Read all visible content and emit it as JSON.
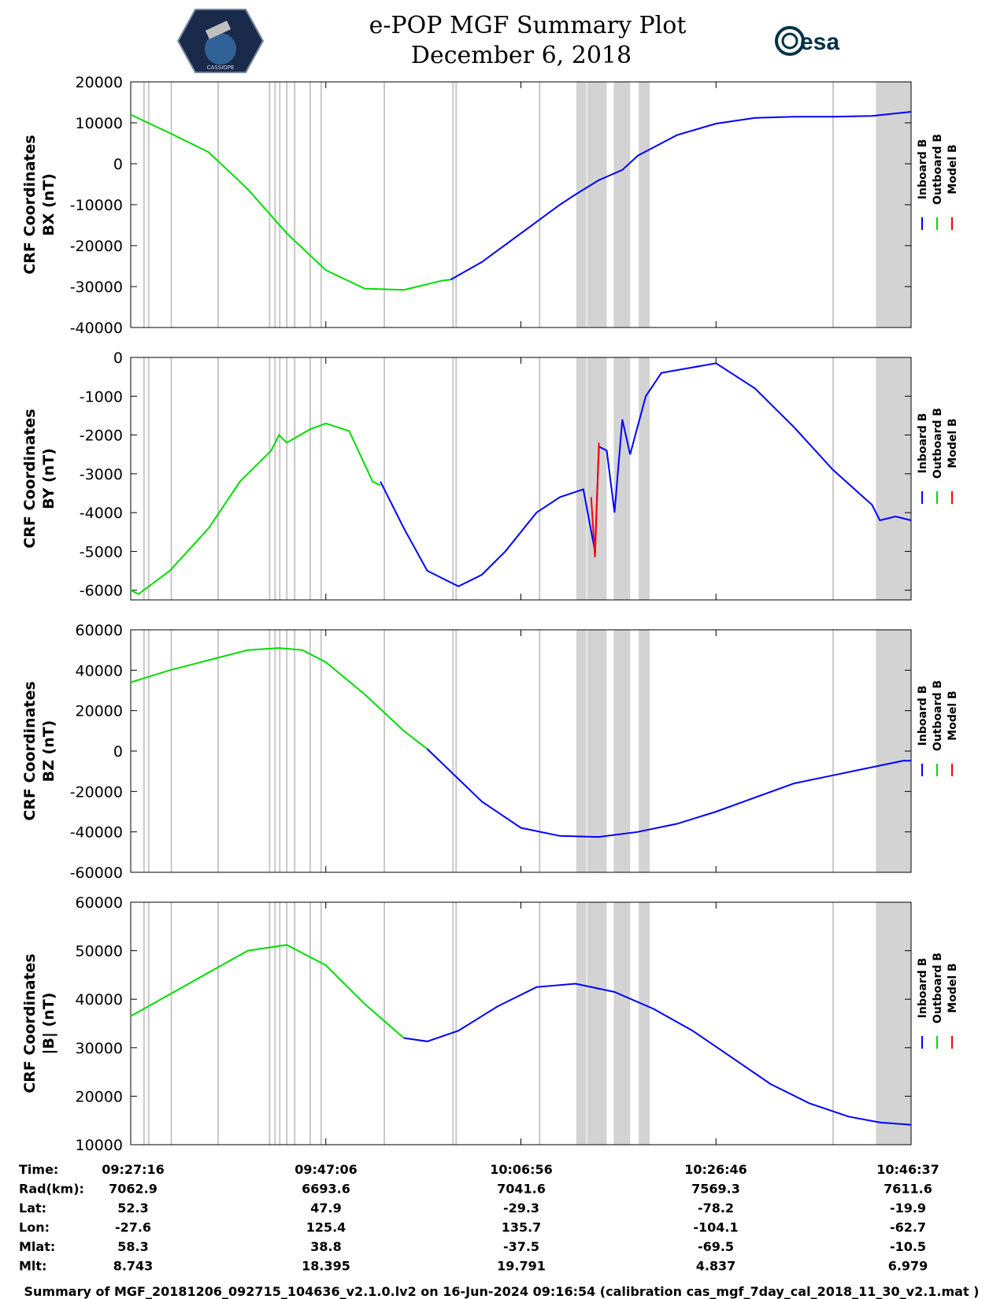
{
  "header": {
    "title": "e-POP MGF Summary Plot",
    "date": "December 6, 2018",
    "logo_left_text": "CASSIOPE",
    "logo_right_text": "esa"
  },
  "colors": {
    "inboard": "#0000ff",
    "outboard": "#00dd00",
    "model": "#ff0000",
    "shade": "#d3d3d3",
    "thin_line": "#c8c8c8"
  },
  "chart_data": [
    {
      "type": "line",
      "ylabel_line1": "CRF Coordinates",
      "ylabel_line2": "BX (nT)",
      "ylim": [
        -40000,
        20000
      ],
      "yticks": [
        20000,
        10000,
        0,
        -10000,
        -20000,
        -30000,
        -40000
      ],
      "series": [
        {
          "name": "Outboard B",
          "x": [
            0,
            0.05,
            0.1,
            0.15,
            0.2,
            0.25,
            0.3,
            0.35,
            0.4,
            0.41
          ],
          "y": [
            12000,
            7500,
            2800,
            -6200,
            -17000,
            -26000,
            -30500,
            -30800,
            -28500,
            -28300
          ]
        },
        {
          "name": "Inboard B",
          "x": [
            0.41,
            0.45,
            0.5,
            0.55,
            0.57,
            0.6,
            0.63,
            0.65,
            0.68,
            0.7,
            0.75,
            0.8,
            0.85,
            0.9,
            0.95,
            1.0
          ],
          "y": [
            -28300,
            -24000,
            -17000,
            -10000,
            -7500,
            -4000,
            -1500,
            2000,
            5000,
            7000,
            9800,
            11200,
            11500,
            11500,
            11700,
            12700
          ]
        }
      ],
      "shaded_regions": [
        [
          0.571,
          0.584
        ],
        [
          0.585,
          0.61
        ],
        [
          0.619,
          0.64
        ],
        [
          0.651,
          0.665
        ],
        [
          0.955,
          1.0
        ]
      ]
    },
    {
      "type": "line",
      "ylabel_line1": "CRF Coordinates",
      "ylabel_line2": "BY (nT)",
      "ylim": [
        -6250,
        0
      ],
      "yticks": [
        0,
        -1000,
        -2000,
        -3000,
        -4000,
        -5000,
        -6000
      ],
      "series": [
        {
          "name": "Outboard B",
          "x": [
            0,
            0.01,
            0.05,
            0.1,
            0.14,
            0.18,
            0.19,
            0.2,
            0.23,
            0.25,
            0.28,
            0.31,
            0.32
          ],
          "y": [
            -6000,
            -6100,
            -5500,
            -4400,
            -3200,
            -2400,
            -2000,
            -2200,
            -1850,
            -1700,
            -1900,
            -3200,
            -3300
          ]
        },
        {
          "name": "Inboard B",
          "x": [
            0.32,
            0.35,
            0.38,
            0.42,
            0.45,
            0.48,
            0.52,
            0.55,
            0.58,
            0.595,
            0.6,
            0.61,
            0.62,
            0.63,
            0.64,
            0.66,
            0.68,
            0.75,
            0.8,
            0.85,
            0.9,
            0.95,
            0.96,
            0.98,
            1.0
          ],
          "y": [
            -3200,
            -4400,
            -5500,
            -5900,
            -5600,
            -5000,
            -4000,
            -3600,
            -3400,
            -5000,
            -2300,
            -2400,
            -4000,
            -1600,
            -2500,
            -1000,
            -400,
            -150,
            -800,
            -1800,
            -2900,
            -3800,
            -4200,
            -4100,
            -4200
          ]
        },
        {
          "name": "Model B",
          "x": [
            0.59,
            0.595,
            0.6
          ],
          "y": [
            -3600,
            -5150,
            -2200
          ]
        }
      ],
      "shaded_regions": [
        [
          0.571,
          0.584
        ],
        [
          0.585,
          0.61
        ],
        [
          0.619,
          0.64
        ],
        [
          0.651,
          0.665
        ],
        [
          0.955,
          1.0
        ]
      ]
    },
    {
      "type": "line",
      "ylabel_line1": "CRF Coordinates",
      "ylabel_line2": "BZ (nT)",
      "ylim": [
        -60000,
        60000
      ],
      "yticks": [
        60000,
        40000,
        20000,
        0,
        -20000,
        -40000,
        -60000
      ],
      "series": [
        {
          "name": "Outboard B",
          "x": [
            0,
            0.05,
            0.1,
            0.15,
            0.19,
            0.22,
            0.25,
            0.3,
            0.35,
            0.38
          ],
          "y": [
            34000,
            40000,
            45000,
            50000,
            51000,
            50000,
            44000,
            28000,
            10000,
            1000
          ]
        },
        {
          "name": "Inboard B",
          "x": [
            0.38,
            0.45,
            0.5,
            0.55,
            0.6,
            0.65,
            0.7,
            0.75,
            0.8,
            0.85,
            0.9,
            0.95,
            0.99,
            1.0
          ],
          "y": [
            1000,
            -25000,
            -38000,
            -42000,
            -42500,
            -40000,
            -36000,
            -30000,
            -23000,
            -16000,
            -12000,
            -8000,
            -4800,
            -4800
          ]
        }
      ],
      "shaded_regions": [
        [
          0.571,
          0.584
        ],
        [
          0.585,
          0.61
        ],
        [
          0.619,
          0.64
        ],
        [
          0.651,
          0.665
        ],
        [
          0.955,
          1.0
        ]
      ]
    },
    {
      "type": "line",
      "ylabel_line1": "CRF Coordinates",
      "ylabel_line2": "|B| (nT)",
      "ylim": [
        10000,
        60000
      ],
      "yticks": [
        60000,
        50000,
        40000,
        30000,
        20000,
        10000
      ],
      "series": [
        {
          "name": "Outboard B",
          "x": [
            0,
            0.05,
            0.1,
            0.15,
            0.2,
            0.25,
            0.3,
            0.35
          ],
          "y": [
            36500,
            41000,
            45500,
            50000,
            51200,
            47000,
            39000,
            32000
          ]
        },
        {
          "name": "Inboard B",
          "x": [
            0.35,
            0.38,
            0.42,
            0.47,
            0.52,
            0.57,
            0.62,
            0.67,
            0.72,
            0.77,
            0.82,
            0.87,
            0.92,
            0.96,
            1.0
          ],
          "y": [
            32000,
            31300,
            33500,
            38500,
            42500,
            43200,
            41500,
            38000,
            33500,
            28000,
            22500,
            18500,
            15800,
            14600,
            14100
          ]
        }
      ],
      "shaded_regions": [
        [
          0.571,
          0.584
        ],
        [
          0.585,
          0.61
        ],
        [
          0.619,
          0.64
        ],
        [
          0.651,
          0.665
        ],
        [
          0.955,
          1.0
        ]
      ]
    }
  ],
  "thin_lines_x": [
    0.017,
    0.023,
    0.052,
    0.112,
    0.178,
    0.185,
    0.191,
    0.2,
    0.21,
    0.23,
    0.244,
    0.325,
    0.413,
    0.417,
    0.524,
    0.9
  ],
  "legend": [
    "Inboard B",
    "Outboard B",
    "Model B"
  ],
  "info_table": {
    "rows": [
      {
        "label": "Time:",
        "values": [
          "09:27:16",
          "09:47:06",
          "10:06:56",
          "10:26:46",
          "10:46:37"
        ]
      },
      {
        "label": "Rad(km):",
        "values": [
          "7062.9",
          "6693.6",
          "7041.6",
          "7569.3",
          "7611.6"
        ]
      },
      {
        "label": "Lat:",
        "values": [
          "52.3",
          "47.9",
          "-29.3",
          "-78.2",
          "-19.9"
        ]
      },
      {
        "label": "Lon:",
        "values": [
          "-27.6",
          "125.4",
          "135.7",
          "-104.1",
          "-62.7"
        ]
      },
      {
        "label": "Mlat:",
        "values": [
          "58.3",
          "38.8",
          "-37.5",
          "-69.5",
          "-10.5"
        ]
      },
      {
        "label": "Mlt:",
        "values": [
          "8.743",
          "18.395",
          "19.791",
          "4.837",
          "6.979"
        ]
      }
    ]
  },
  "footer": "Summary of MGF_20181206_092715_104636_v2.1.0.lv2 on 16-Jun-2024 09:16:54 (calibration cas_mgf_7day_cal_2018_11_30_v2.1.mat )"
}
